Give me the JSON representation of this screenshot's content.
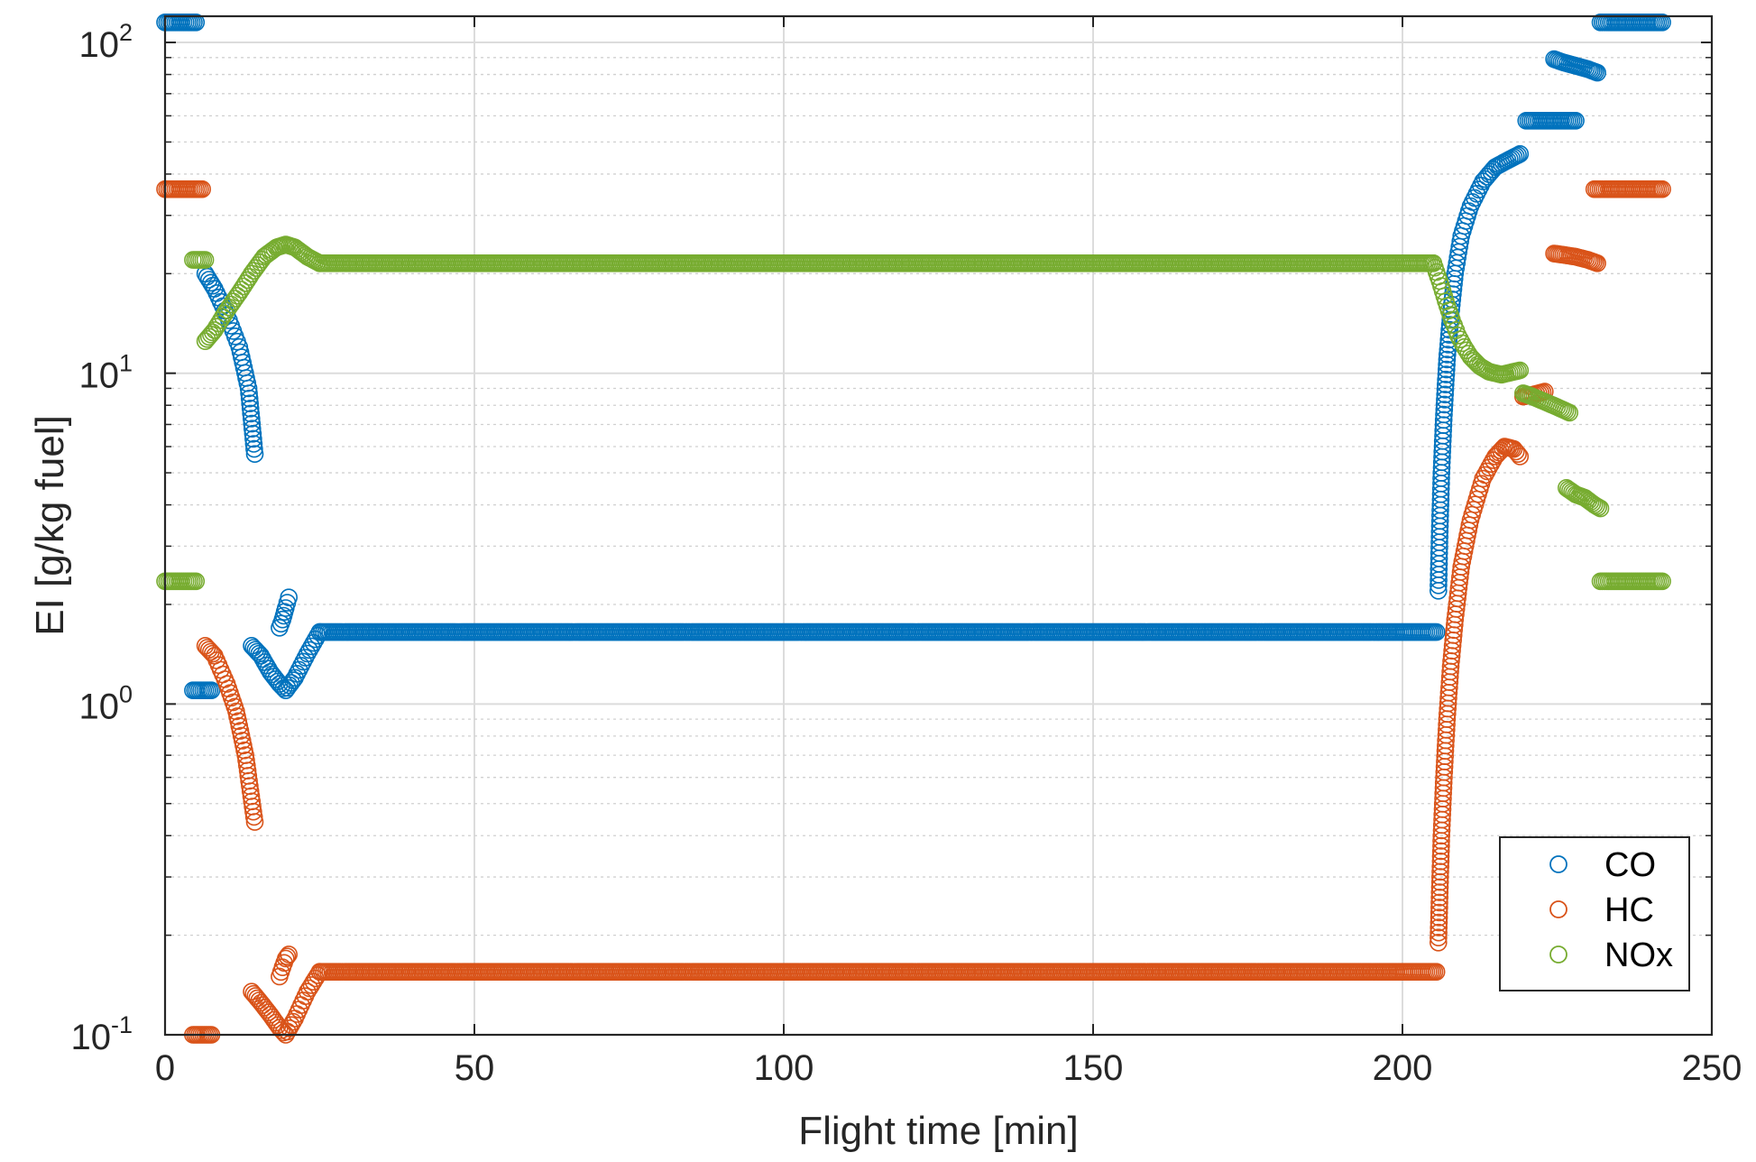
{
  "chart_data": {
    "type": "scatter",
    "title": "",
    "xlabel": "Flight time [min]",
    "ylabel": "EI [g/kg fuel]",
    "xlim": [
      0,
      250
    ],
    "ylim": [
      0.1,
      120
    ],
    "yscale": "log",
    "grid": true,
    "legend_position": "bottom-right",
    "marker": "open-circle",
    "x_ticks": [
      "0",
      "50",
      "100",
      "150",
      "200",
      "250"
    ],
    "y_ticks": [
      {
        "base": "10",
        "exp": "-1",
        "value": 0.1
      },
      {
        "base": "10",
        "exp": "0",
        "value": 1
      },
      {
        "base": "10",
        "exp": "1",
        "value": 10
      },
      {
        "base": "10",
        "exp": "2",
        "value": 100
      }
    ],
    "series": [
      {
        "name": "CO",
        "color": "#0072bd",
        "segments": [
          {
            "x": [
              0,
              5
            ],
            "y": [
              115,
              115
            ]
          },
          {
            "x": [
              4.5,
              7.5
            ],
            "y": [
              1.1,
              1.1
            ]
          },
          {
            "x": [
              6.5,
              8,
              10,
              12,
              13.5,
              14.5
            ],
            "y": [
              20,
              18,
              15,
              12,
              9,
              5.7
            ]
          },
          {
            "x": [
              14,
              15.5,
              17,
              18.5,
              19.5,
              21,
              23,
              25
            ],
            "y": [
              1.5,
              1.4,
              1.25,
              1.15,
              1.1,
              1.2,
              1.42,
              1.65
            ]
          },
          {
            "x": [
              18.5,
              19,
              19.5,
              20
            ],
            "y": [
              1.7,
              1.8,
              1.95,
              2.1
            ]
          },
          {
            "x": [
              25,
              50,
              100,
              150,
              200,
              205.5
            ],
            "y": [
              1.65,
              1.65,
              1.65,
              1.65,
              1.65,
              1.65
            ]
          },
          {
            "x": [
              205.8,
              206,
              206.3,
              206.7,
              207.2,
              207.8,
              208.5,
              209.5,
              211,
              213,
              215,
              217,
              219
            ],
            "y": [
              2.2,
              3.2,
              5,
              7.5,
              11,
              15,
              20,
              26,
              32,
              38,
              42,
              44,
              46
            ]
          },
          {
            "x": [
              220,
              222,
              224,
              226,
              228
            ],
            "y": [
              58,
              58,
              58,
              58,
              58
            ]
          },
          {
            "x": [
              224.5,
              226,
              228,
              230,
              231.5
            ],
            "y": [
              89,
              87,
              85,
              83,
              81
            ]
          },
          {
            "x": [
              232,
              236,
              240,
              242
            ],
            "y": [
              115,
              115,
              115,
              115
            ]
          }
        ]
      },
      {
        "name": "HC",
        "color": "#d95319",
        "segments": [
          {
            "x": [
              0,
              6
            ],
            "y": [
              36,
              36
            ]
          },
          {
            "x": [
              4.5,
              7.5
            ],
            "y": [
              0.1,
              0.1
            ]
          },
          {
            "x": [
              6.5,
              8,
              10,
              11.5,
              13,
              14.5
            ],
            "y": [
              1.5,
              1.4,
              1.15,
              0.95,
              0.7,
              0.44
            ]
          },
          {
            "x": [
              14,
              15.5,
              17,
              18.5,
              19.5,
              21,
              23,
              25
            ],
            "y": [
              0.135,
              0.125,
              0.115,
              0.105,
              0.1,
              0.112,
              0.135,
              0.155
            ]
          },
          {
            "x": [
              18.5,
              19,
              19.5,
              20
            ],
            "y": [
              0.15,
              0.16,
              0.17,
              0.175
            ]
          },
          {
            "x": [
              25,
              50,
              100,
              150,
              200,
              205.5
            ],
            "y": [
              0.155,
              0.155,
              0.155,
              0.155,
              0.155,
              0.155
            ]
          },
          {
            "x": [
              205.8,
              206,
              206.3,
              206.7,
              207.2,
              207.8,
              208.5,
              209.5,
              211,
              213,
              215,
              216.5,
              218,
              219
            ],
            "y": [
              0.19,
              0.26,
              0.4,
              0.6,
              0.9,
              1.3,
              1.8,
              2.6,
              3.6,
              4.8,
              5.6,
              6,
              5.9,
              5.6
            ]
          },
          {
            "x": [
              219.5,
              221,
              222,
              223
            ],
            "y": [
              8.5,
              8.6,
              8.7,
              8.8
            ]
          },
          {
            "x": [
              224.5,
              226,
              228,
              230,
              231.5
            ],
            "y": [
              23,
              22.8,
              22.5,
              22,
              21.5
            ]
          },
          {
            "x": [
              231,
              235,
              239,
              242
            ],
            "y": [
              36,
              36,
              36,
              36
            ]
          }
        ]
      },
      {
        "name": "NOx",
        "color": "#77ac30",
        "segments": [
          {
            "x": [
              0,
              5
            ],
            "y": [
              2.35,
              2.35
            ]
          },
          {
            "x": [
              4.5,
              6.5
            ],
            "y": [
              22,
              22
            ]
          },
          {
            "x": [
              6.5,
              8,
              10,
              12,
              14,
              16,
              18,
              19.5,
              21,
              23,
              25
            ],
            "y": [
              12.5,
              13.5,
              15.5,
              17.5,
              20,
              22.5,
              24,
              24.5,
              24,
              22.5,
              21.5
            ]
          },
          {
            "x": [
              25,
              50,
              100,
              150,
              200,
              205
            ],
            "y": [
              21.5,
              21.5,
              21.5,
              21.5,
              21.5,
              21.5
            ]
          },
          {
            "x": [
              205,
              206,
              207,
              208,
              209,
              210,
              211,
              212.5,
              214,
              216,
              218,
              219
            ],
            "y": [
              21.5,
              19,
              16.5,
              14.5,
              13,
              12,
              11.2,
              10.5,
              10.1,
              9.9,
              10.1,
              10.2
            ]
          },
          {
            "x": [
              219.5,
              221,
              223,
              225,
              227
            ],
            "y": [
              8.7,
              8.5,
              8.2,
              7.9,
              7.6
            ]
          },
          {
            "x": [
              226.5,
              228,
              229.5,
              231,
              232
            ],
            "y": [
              4.5,
              4.3,
              4.2,
              4.0,
              3.9
            ]
          },
          {
            "x": [
              232,
              236,
              240,
              242
            ],
            "y": [
              2.35,
              2.35,
              2.35,
              2.35
            ]
          }
        ]
      }
    ]
  }
}
